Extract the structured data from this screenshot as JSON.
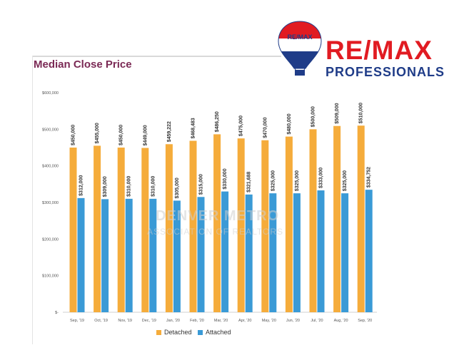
{
  "brand": {
    "name": "RE/MAX",
    "sub": "PROFESSIONALS",
    "balloon_text": "RE/MAX",
    "colors": {
      "red": "#e11b22",
      "blue": "#1f3c88"
    }
  },
  "watermark": {
    "line1": "DENVER METRO",
    "line2": "ASSOCIATION OF REALTORS"
  },
  "chart_data": {
    "type": "bar",
    "title": "Median Close Price",
    "xlabel": "",
    "ylabel": "",
    "ylim": [
      0,
      600000
    ],
    "yticks": [
      "$-",
      "$100,000",
      "$200,000",
      "$300,000",
      "$400,000",
      "$500,000",
      "$600,000"
    ],
    "categories": [
      "Sep, '19",
      "Oct, '19",
      "Nov, '19",
      "Dec, '19",
      "Jan, '20",
      "Feb, '20",
      "Mar, '20",
      "Apr, '20",
      "May, '20",
      "Jun, '20",
      "Jul, '20",
      "Aug, '20",
      "Sep, '20"
    ],
    "series": [
      {
        "name": "Detached",
        "color": "#f5ac3b",
        "values": [
          450000,
          455000,
          450000,
          449000,
          459222,
          468483,
          486250,
          475000,
          470000,
          480000,
          500000,
          509000,
          510000
        ],
        "labels": [
          "$450,000",
          "$455,000",
          "$450,000",
          "$449,000",
          "$459,222",
          "$468,483",
          "$486,250",
          "$475,000",
          "$470,000",
          "$480,000",
          "$500,000",
          "$509,000",
          "$510,000"
        ]
      },
      {
        "name": "Attached",
        "color": "#3a9ad6",
        "values": [
          312000,
          309000,
          310000,
          310000,
          305000,
          315000,
          330000,
          321688,
          325000,
          325000,
          333000,
          325000,
          334752
        ],
        "labels": [
          "$312,000",
          "$309,000",
          "$310,000",
          "$310,000",
          "$305,000",
          "$315,000",
          "$330,000",
          "$321,688",
          "$325,000",
          "$325,000",
          "$333,000",
          "$325,000",
          "$334,752"
        ]
      }
    ],
    "legend_position": "bottom"
  }
}
